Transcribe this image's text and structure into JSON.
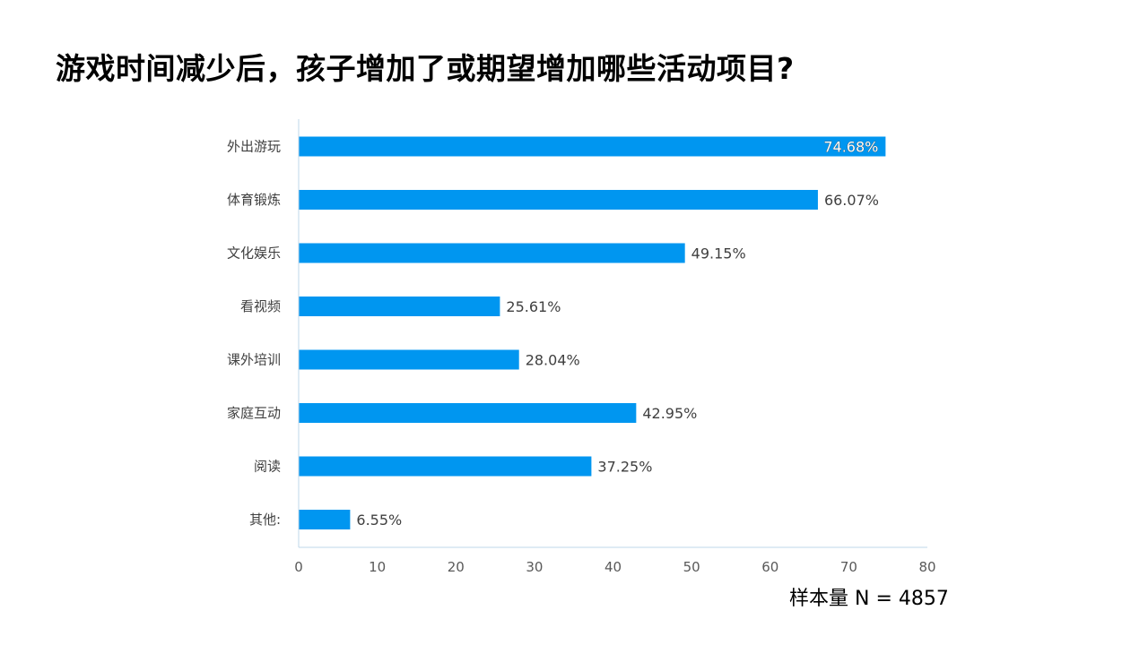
{
  "title": "游戏时间减少后，孩子增加了或期望增加哪些活动项目?",
  "sample_note": "样本量 N = 4857",
  "colors": {
    "bar": "#0096F0",
    "axis": "#BFD7EA"
  },
  "chart_data": {
    "type": "bar",
    "orientation": "horizontal",
    "categories": [
      "外出游玩",
      "体育锻炼",
      "文化娱乐",
      "看视频",
      "课外培训",
      "家庭互动",
      "阅读",
      "其他:"
    ],
    "values": [
      74.68,
      66.07,
      49.15,
      25.61,
      28.04,
      42.95,
      37.25,
      6.55
    ],
    "value_labels": [
      "74.68%",
      "66.07%",
      "49.15%",
      "25.61%",
      "28.04%",
      "42.95%",
      "37.25%",
      "6.55%"
    ],
    "xlim": [
      0,
      80
    ],
    "xticks": [
      0,
      10,
      20,
      30,
      40,
      50,
      60,
      70,
      80
    ],
    "grid": false,
    "legend": "none"
  }
}
